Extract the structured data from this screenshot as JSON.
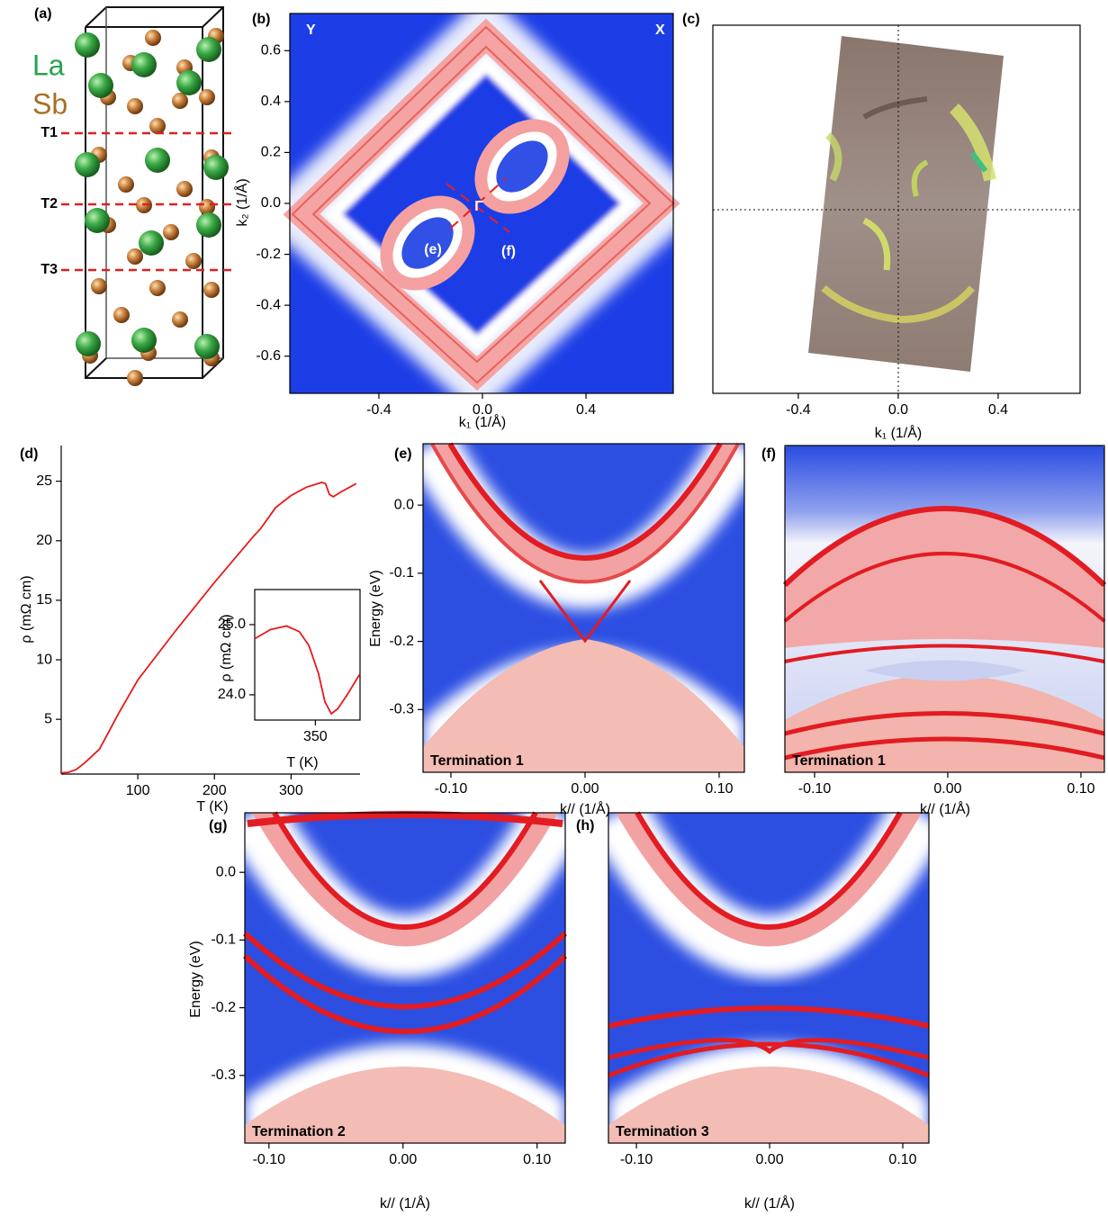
{
  "chart_data": [
    {
      "type": "structure",
      "label": "(a)",
      "species": [
        {
          "name": "La",
          "color": "#27a34f"
        },
        {
          "name": "Sb",
          "color": "#a86f24"
        }
      ],
      "terminations": [
        "T1",
        "T2",
        "T3"
      ]
    },
    {
      "type": "heatmap",
      "label": "(b)",
      "xlabel": "k₁ (1/Å)",
      "ylabel": "k₂ (1/Å)",
      "annotations": [
        "Y",
        "X",
        "Γ",
        "(e)",
        "(f)"
      ],
      "xlim": [
        -0.744,
        0.737
      ],
      "ylim": [
        -0.746,
        0.746
      ],
      "xticks": [
        -0.4,
        {
          "value": 0,
          "label": "0.0"
        },
        0.4
      ],
      "yticks": [
        0.6,
        0.4,
        0.2,
        {
          "value": 0,
          "label": "0.0"
        },
        -0.2,
        -0.4,
        -0.6
      ]
    },
    {
      "type": "heatmap",
      "label": "(c)",
      "xlabel": "k₁ (1/Å)",
      "xlim": [
        -0.742,
        0.728
      ],
      "xticks": [
        -0.4,
        {
          "value": 0,
          "label": "0.0"
        },
        0.4
      ]
    },
    {
      "type": "line",
      "label": "(d)",
      "xlabel": "T (K)",
      "ylabel": "ρ (mΩ cm)",
      "color": "#e8191b",
      "x": [
        0,
        10,
        20,
        30,
        40,
        50,
        75,
        100,
        150,
        200,
        250,
        260,
        280,
        300,
        320,
        340,
        345,
        350,
        355,
        365,
        385
      ],
      "values": [
        0.5,
        0.55,
        0.8,
        1.3,
        1.9,
        2.5,
        5.5,
        8.3,
        12.5,
        16.5,
        20.3,
        21,
        22.8,
        23.8,
        24.5,
        24.9,
        24.8,
        23.9,
        23.7,
        24.1,
        24.8
      ],
      "xlim": [
        0,
        390
      ],
      "ylim": [
        0.4,
        28
      ],
      "xticks": [
        100,
        200,
        300
      ],
      "yticks": [
        5,
        10,
        15,
        20,
        25
      ],
      "inset": {
        "type": "line",
        "xlabel": "T (K)",
        "ylabel": "ρ (mΩ cm)",
        "x": [
          331,
          336,
          341,
          345,
          348,
          351,
          353,
          355,
          357,
          360,
          364
        ],
        "values": [
          24.8,
          24.93,
          24.98,
          24.9,
          24.7,
          24.3,
          23.9,
          23.73,
          23.8,
          24.0,
          24.3
        ],
        "xlim": [
          331,
          364
        ],
        "ylim": [
          23.64,
          25.5
        ],
        "xticks": [
          350
        ],
        "yticks": [
          {
            "value": 25,
            "label": "25.0"
          },
          {
            "value": 24,
            "label": "24.0"
          }
        ]
      }
    },
    {
      "type": "heatmap",
      "label": "(e)",
      "annotations": [
        "Termination 1"
      ],
      "xlabel": "k// (1/Å)",
      "ylabel": "Energy (eV)",
      "xlim": [
        -0.1208,
        0.1188
      ],
      "ylim": [
        -0.392,
        0.09
      ],
      "xticks": [
        {
          "value": -0.1,
          "label": "-0.10"
        },
        {
          "value": 0,
          "label": "0.00"
        },
        {
          "value": 0.1,
          "label": "0.10"
        }
      ],
      "yticks": [
        {
          "value": 0,
          "label": "0.0"
        },
        -0.1,
        -0.2,
        -0.3
      ]
    },
    {
      "type": "heatmap",
      "label": "(f)",
      "annotations": [
        "Termination 1"
      ],
      "xlabel": "k// (1/Å)",
      "xlim": [
        -0.1223,
        0.1176
      ],
      "xticks": [
        {
          "value": -0.1,
          "label": "-0.10"
        },
        {
          "value": 0,
          "label": "0.00"
        },
        {
          "value": 0.1,
          "label": "0.10"
        }
      ]
    },
    {
      "type": "heatmap",
      "label": "(g)",
      "annotations": [
        "Termination 2"
      ],
      "xlabel": "k// (1/Å)",
      "ylabel": "Energy (eV)",
      "xlim": [
        -0.118,
        0.121
      ],
      "ylim": [
        -0.4,
        0.088
      ],
      "xticks": [
        {
          "value": -0.1,
          "label": "-0.10"
        },
        {
          "value": 0,
          "label": "0.00"
        },
        {
          "value": 0.1,
          "label": "0.10"
        }
      ],
      "yticks": [
        {
          "value": 0,
          "label": "0.0"
        },
        -0.1,
        -0.2,
        -0.3
      ]
    },
    {
      "type": "heatmap",
      "label": "(h)",
      "annotations": [
        "Termination 3"
      ],
      "xlabel": "k// (1/Å)",
      "xlim": [
        -0.121,
        0.1196
      ],
      "xticks": [
        {
          "value": -0.1,
          "label": "-0.10"
        },
        {
          "value": 0,
          "label": "0.00"
        },
        {
          "value": 0.1,
          "label": "0.10"
        }
      ]
    }
  ]
}
